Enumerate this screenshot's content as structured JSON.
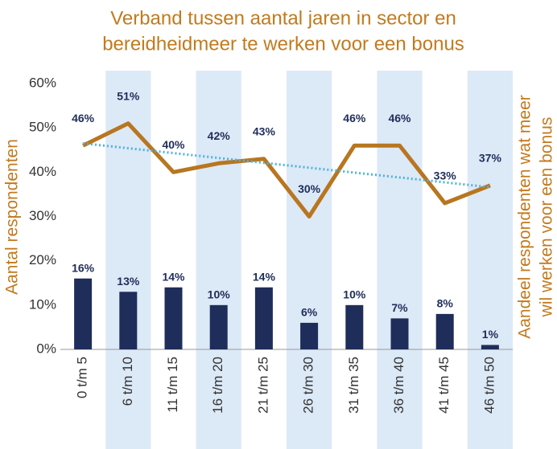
{
  "chart_data": {
    "type": "bar_line",
    "title": [
      "Verband tussen aantal jaren in sector en",
      "bereidheidmeer te werken voor een bonus"
    ],
    "y_label": "Aantal respondenten",
    "y2_label": [
      "Aandeel respondenten wat meer",
      "wil werken voor een bonus"
    ],
    "categories": [
      "0 t/m 5",
      "6 t/m 10",
      "11 t/m 15",
      "16 t/m 20",
      "21 t/m 25",
      "26 t/m 30",
      "31 t/m 35",
      "36 t/m 40",
      "41 t/m 45",
      "46 t/m 50"
    ],
    "series": [
      {
        "kind": "bar",
        "color": "#1f2d5a",
        "values": [
          16,
          13,
          14,
          10,
          14,
          6,
          10,
          7,
          8,
          1
        ],
        "value_labels": [
          "16%",
          "13%",
          "14%",
          "10%",
          "14%",
          "6%",
          "10%",
          "7%",
          "8%",
          "1%"
        ]
      },
      {
        "kind": "line",
        "color": "#b87620",
        "values": [
          46,
          51,
          40,
          42,
          43,
          30,
          46,
          46,
          33,
          37
        ],
        "value_labels": [
          "46%",
          "51%",
          "40%",
          "42%",
          "43%",
          "30%",
          "46%",
          "46%",
          "33%",
          "37%"
        ]
      }
    ],
    "trendline": {
      "color": "#4fb3d9",
      "values": [
        46.5,
        36.6
      ]
    },
    "band_color": "#dce9f7",
    "ylim": [
      0,
      60
    ],
    "yticks": [
      {
        "value": 0,
        "label": "0%"
      },
      {
        "value": 10,
        "label": "10%"
      },
      {
        "value": 20,
        "label": "20%"
      },
      {
        "value": 30,
        "label": "30%"
      },
      {
        "value": 40,
        "label": "40%"
      },
      {
        "value": 50,
        "label": "50%"
      },
      {
        "value": 60,
        "label": "60%"
      }
    ]
  }
}
